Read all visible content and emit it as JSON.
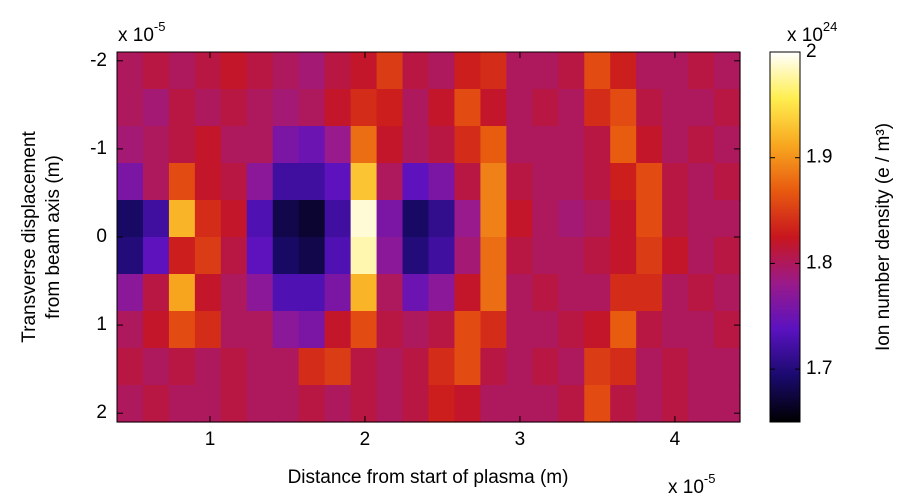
{
  "chart_data": {
    "type": "heatmap",
    "xlabel": "Distance from start of plasma (m)",
    "ylabel": [
      "Transverse displacement",
      "from beam axis (m)"
    ],
    "x_multiplier": {
      "base": "x 10",
      "exponent": "-5"
    },
    "y_multiplier": {
      "base": "x 10",
      "exponent": "-5"
    },
    "colorbar": {
      "label": "Ion number density (e / m³)",
      "multiplier": {
        "base": "x 10",
        "exponent": "24"
      },
      "clim": [
        1.65,
        2
      ],
      "ticks": [
        1.7,
        1.8,
        1.9,
        2
      ],
      "colormap": [
        "#000000",
        "#1a0a6e",
        "#5a12c0",
        "#9a1a8a",
        "#c8161e",
        "#e85a10",
        "#f8a820",
        "#ffee50",
        "#ffffff"
      ]
    },
    "xlim": [
      0.4,
      4.42
    ],
    "xticks": [
      1,
      2,
      3,
      4
    ],
    "ylim": [
      -2.1,
      2.1
    ],
    "yticks": [
      -2,
      -1,
      0,
      1,
      2
    ],
    "y_reversed": true,
    "z": [
      [
        1.8,
        1.81,
        1.8,
        1.81,
        1.82,
        1.81,
        1.8,
        1.79,
        1.81,
        1.82,
        1.85,
        1.81,
        1.8,
        1.83,
        1.84,
        1.8,
        1.8,
        1.81,
        1.86,
        1.83,
        1.8,
        1.8,
        1.81,
        1.8
      ],
      [
        1.8,
        1.79,
        1.81,
        1.8,
        1.81,
        1.8,
        1.79,
        1.8,
        1.82,
        1.84,
        1.83,
        1.8,
        1.82,
        1.86,
        1.82,
        1.8,
        1.81,
        1.8,
        1.84,
        1.86,
        1.81,
        1.8,
        1.8,
        1.81
      ],
      [
        1.79,
        1.8,
        1.81,
        1.82,
        1.8,
        1.8,
        1.76,
        1.75,
        1.78,
        1.88,
        1.82,
        1.8,
        1.81,
        1.84,
        1.87,
        1.8,
        1.8,
        1.8,
        1.81,
        1.87,
        1.82,
        1.8,
        1.81,
        1.8
      ],
      [
        1.76,
        1.8,
        1.86,
        1.82,
        1.81,
        1.77,
        1.72,
        1.72,
        1.74,
        1.93,
        1.8,
        1.74,
        1.76,
        1.81,
        1.89,
        1.81,
        1.8,
        1.8,
        1.81,
        1.83,
        1.86,
        1.81,
        1.8,
        1.81
      ],
      [
        1.69,
        1.72,
        1.92,
        1.84,
        1.82,
        1.73,
        1.68,
        1.67,
        1.72,
        1.99,
        1.76,
        1.69,
        1.71,
        1.78,
        1.89,
        1.82,
        1.8,
        1.79,
        1.8,
        1.82,
        1.86,
        1.81,
        1.8,
        1.8
      ],
      [
        1.7,
        1.74,
        1.83,
        1.85,
        1.81,
        1.74,
        1.69,
        1.68,
        1.73,
        1.98,
        1.77,
        1.7,
        1.72,
        1.79,
        1.88,
        1.81,
        1.8,
        1.8,
        1.81,
        1.82,
        1.85,
        1.82,
        1.8,
        1.81
      ],
      [
        1.77,
        1.81,
        1.91,
        1.82,
        1.8,
        1.77,
        1.73,
        1.73,
        1.76,
        1.92,
        1.8,
        1.75,
        1.77,
        1.82,
        1.88,
        1.8,
        1.81,
        1.8,
        1.8,
        1.84,
        1.84,
        1.8,
        1.81,
        1.8
      ],
      [
        1.8,
        1.82,
        1.86,
        1.84,
        1.8,
        1.8,
        1.77,
        1.76,
        1.82,
        1.86,
        1.81,
        1.8,
        1.81,
        1.86,
        1.84,
        1.8,
        1.8,
        1.81,
        1.82,
        1.87,
        1.81,
        1.8,
        1.8,
        1.81
      ],
      [
        1.81,
        1.8,
        1.81,
        1.8,
        1.81,
        1.8,
        1.8,
        1.84,
        1.85,
        1.81,
        1.8,
        1.81,
        1.84,
        1.86,
        1.81,
        1.8,
        1.81,
        1.8,
        1.85,
        1.84,
        1.8,
        1.81,
        1.8,
        1.8
      ],
      [
        1.8,
        1.81,
        1.8,
        1.8,
        1.81,
        1.8,
        1.8,
        1.81,
        1.8,
        1.81,
        1.8,
        1.81,
        1.83,
        1.82,
        1.8,
        1.8,
        1.8,
        1.81,
        1.86,
        1.81,
        1.8,
        1.81,
        1.8,
        1.8
      ]
    ]
  }
}
